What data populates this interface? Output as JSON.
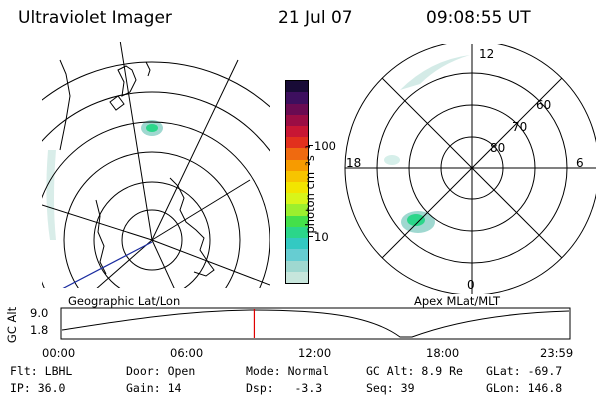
{
  "header": {
    "title": "Ultraviolet Imager",
    "date": "21 Jul 07",
    "time": "09:08:55 UT"
  },
  "left_map": {
    "caption": "Geographic Lat/Lon"
  },
  "right_map": {
    "caption": "Apex MLat/MLT",
    "mlt_labels": {
      "top": "12",
      "left": "18",
      "right": "6",
      "bottom": "0"
    },
    "lat_labels": [
      "60",
      "70",
      "80"
    ]
  },
  "colorbar": {
    "label": "photon cm⁻²s⁻¹",
    "ticks": [
      "100",
      "10"
    ],
    "colors": [
      "#c7e6dc",
      "#9fd8d0",
      "#66cdd2",
      "#33c9c2",
      "#2bd68a",
      "#44e04a",
      "#9cef2e",
      "#d8f51a",
      "#f2e500",
      "#f7c400",
      "#f79b00",
      "#ef6a10",
      "#e2301d",
      "#c81634",
      "#9b0d44",
      "#6a0b52",
      "#3d0f5e",
      "#180b36"
    ]
  },
  "timeline": {
    "y_label": "GC Alt",
    "y_ticks": [
      "9.0",
      "1.8"
    ],
    "x_ticks": [
      "00:00",
      "06:00",
      "12:00",
      "18:00",
      "23:59"
    ],
    "current_time_fraction": 0.38
  },
  "status": {
    "row1": [
      {
        "label": "Flt:",
        "value": "LBHL"
      },
      {
        "label": "Door:",
        "value": "Open"
      },
      {
        "label": "Mode:",
        "value": "Normal"
      },
      {
        "label": "GC Alt:",
        "value": "8.9 Re"
      },
      {
        "label": "GLat:",
        "value": "-69.7"
      }
    ],
    "row2": [
      {
        "label": "IP:",
        "value": "36.0"
      },
      {
        "label": "Gain:",
        "value": "14"
      },
      {
        "label": "Dsp:",
        "value": "-3.3"
      },
      {
        "label": "Seq:",
        "value": "39"
      },
      {
        "label": "GLon:",
        "value": "146.8"
      }
    ]
  }
}
